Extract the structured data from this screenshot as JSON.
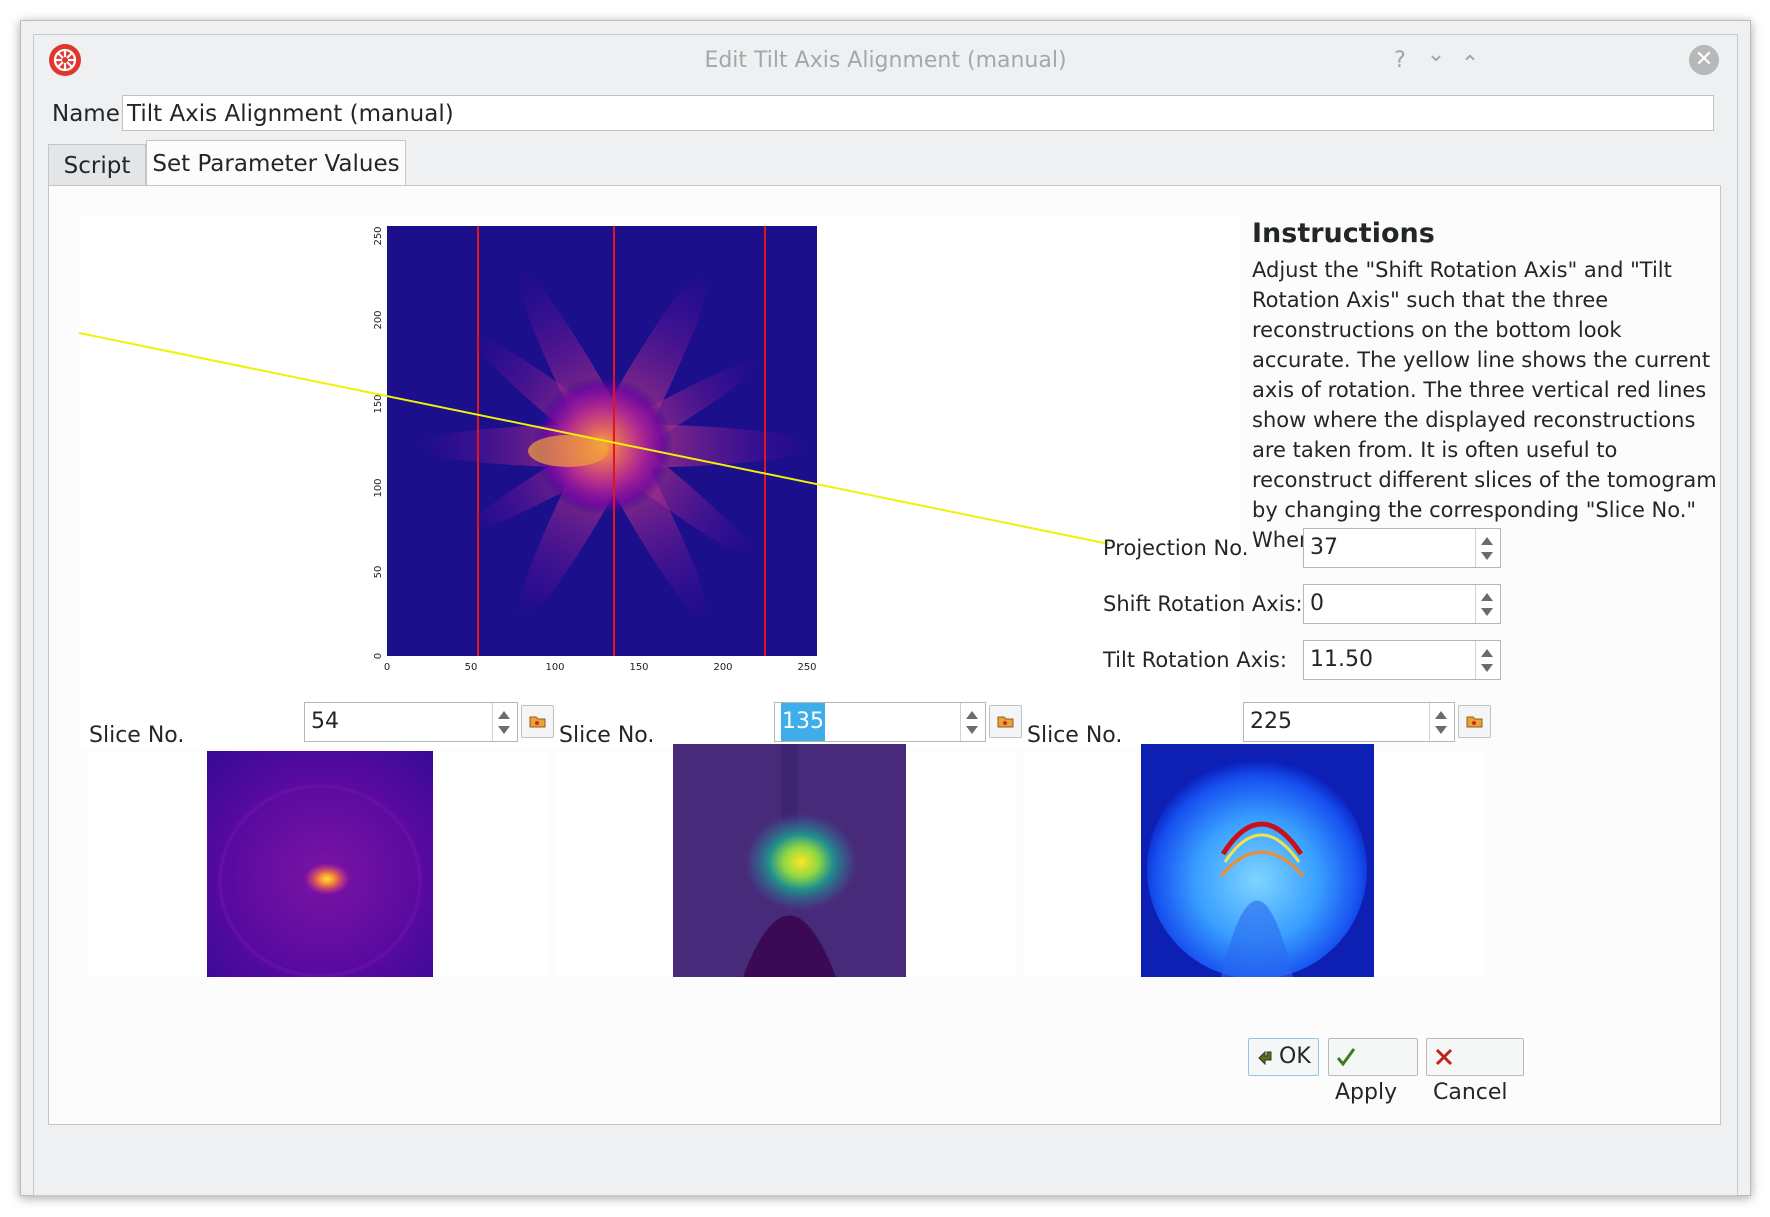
{
  "window": {
    "title": "Edit Tilt Axis Alignment (manual)",
    "help_glyph": "?",
    "min_glyph": "⌄",
    "max_glyph": "⌃",
    "close_glyph": "✕"
  },
  "name": {
    "label": "Name",
    "value": "Tilt Axis Alignment (manual)"
  },
  "tabs": [
    {
      "label": "Script",
      "active": false
    },
    {
      "label": "Set Parameter Values",
      "active": true
    }
  ],
  "instructions": {
    "title": "Instructions",
    "body": "Adjust the \"Shift Rotation Axis\" and \"Tilt Rotation Axis\" such that the three reconstructions on the bottom look accurate. The yellow line shows the current axis of rotation. The three vertical red lines show where the displayed reconstructions are taken from. It is often useful to reconstruct different slices of the tomogram by changing the corresponding \"Slice No.\" When complete, click"
  },
  "params": {
    "projection": {
      "label": "Projection No.",
      "value": "37"
    },
    "shift": {
      "label": "Shift Rotation Axis:",
      "value": "0"
    },
    "tilt": {
      "label": "Tilt Rotation Axis:",
      "value": "11.50"
    }
  },
  "plot": {
    "x_ticks": [
      "0",
      "50",
      "100",
      "150",
      "200",
      "250"
    ],
    "y_ticks": [
      "0",
      "50",
      "100",
      "150",
      "200",
      "250"
    ],
    "colors": {
      "background": "#1b0f8c",
      "red_line": "#e3141c",
      "yellow_line": "#f0f20a"
    }
  },
  "slices": [
    {
      "label": "Slice No.",
      "value": "54"
    },
    {
      "label": "Slice No.",
      "value": "135"
    },
    {
      "label": "Slice No.",
      "value": "225"
    }
  ],
  "buttons": {
    "ok": "OK",
    "apply": "Apply",
    "cancel": "Cancel"
  }
}
